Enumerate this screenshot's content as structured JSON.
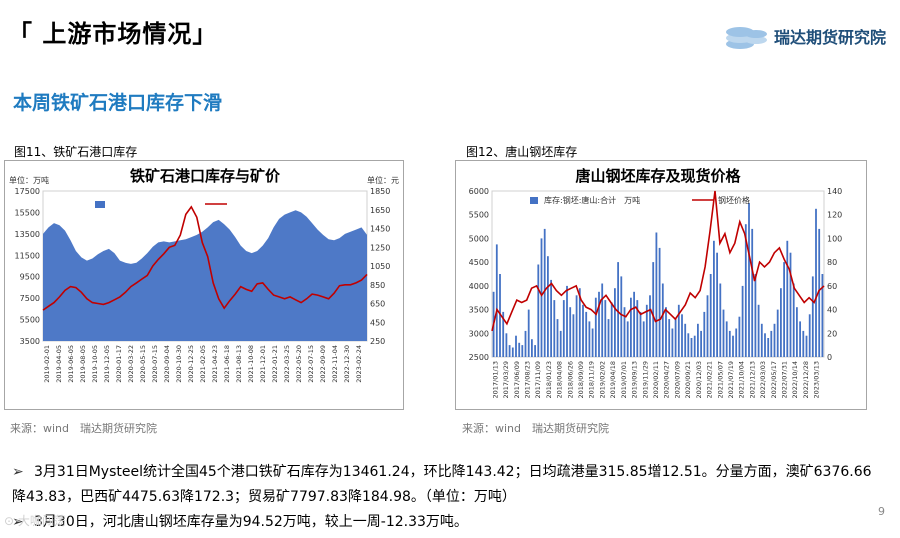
{
  "header": {
    "title": "「 上游市场情况」",
    "logo_text": "瑞达期货研究院"
  },
  "subtitle": "本周铁矿石港口库存下滑",
  "figures": [
    {
      "caption": "图11、铁矿石港口库存",
      "source": "来源：wind　瑞达期货研究院"
    },
    {
      "caption": "图12、唐山钢坯库存",
      "source": "来源：wind　瑞达期货研究院"
    }
  ],
  "bullets": [
    "3月31日Mysteel统计全国45个港口铁矿石库存为13461.24，环比降143.42；日均疏港量315.85增12.51。分量方面，澳矿6376.66降43.83，巴西矿4475.63降172.3；贸易矿7797.83降184.98。（单位：万吨）",
    "3月30日，河北唐山钢坯库存量为94.52万吨，较上一周-12.33万吨。"
  ],
  "page_number": "9",
  "watermark": "⊙ 大咖闯荡",
  "chart_data": [
    {
      "type": "area",
      "title": "铁矿石港口库存与矿价",
      "left_unit": "单位：万吨",
      "right_unit": "单位：元",
      "ylim": [
        3500,
        17500
      ],
      "y2lim": [
        250,
        1850
      ],
      "yticks": [
        "3500",
        "5500",
        "7500",
        "9500",
        "11500",
        "13500",
        "15500",
        "17500"
      ],
      "y2ticks": [
        "250",
        "450",
        "650",
        "850",
        "1050",
        "1250",
        "1450",
        "1650",
        "1850"
      ],
      "xticks": [
        "2019-02-01",
        "2019-04-05",
        "2019-06-05",
        "2019-08-05",
        "2019-10-05",
        "2019-12-05",
        "2020-01-17",
        "2020-03-22",
        "2020-05-15",
        "2020-07-15",
        "2020-09-04",
        "2020-10-30",
        "2020-12-25",
        "2021-02-05",
        "2021-04-23",
        "2021-06-18",
        "2021-08-13",
        "2021-10-08",
        "2021-12-01",
        "2022-01-21",
        "2022-03-25",
        "2022-05-20",
        "2022-07-15",
        "2022-09-09",
        "2022-11-04",
        "2022-12-30",
        "2023-02-24"
      ],
      "series": [
        {
          "name": "库存量（左）",
          "color": "#4472c4",
          "axis": "left",
          "values": [
            13500,
            14100,
            14500,
            14300,
            13800,
            12900,
            11900,
            11300,
            11000,
            11200,
            11600,
            11900,
            12100,
            11700,
            11000,
            10800,
            10700,
            10800,
            11200,
            11700,
            12300,
            12700,
            12800,
            12700,
            12800,
            12900,
            13000,
            13200,
            13400,
            13700,
            14100,
            14600,
            14800,
            14400,
            13900,
            13200,
            12400,
            11900,
            11700,
            11900,
            12400,
            13100,
            14100,
            14900,
            15300,
            15500,
            15700,
            15500,
            15100,
            14500,
            13900,
            13400,
            13000,
            12900,
            13100,
            13500,
            13700,
            13900,
            14100,
            13400
          ]
        },
        {
          "name": "澳洲麦克粉61%（右）",
          "color": "#c00000",
          "axis": "right",
          "values": [
            580,
            620,
            660,
            720,
            790,
            830,
            820,
            770,
            700,
            660,
            650,
            640,
            660,
            690,
            720,
            770,
            830,
            870,
            910,
            950,
            1050,
            1120,
            1180,
            1250,
            1270,
            1380,
            1600,
            1680,
            1570,
            1300,
            1150,
            870,
            700,
            600,
            680,
            750,
            830,
            800,
            780,
            860,
            870,
            800,
            740,
            720,
            700,
            720,
            690,
            660,
            700,
            750,
            740,
            720,
            700,
            760,
            840,
            850,
            850,
            870,
            900,
            960
          ]
        }
      ]
    },
    {
      "type": "bar",
      "title": "唐山钢坯库存及现货价格",
      "ylim": [
        2500,
        6000
      ],
      "y2lim": [
        0,
        140
      ],
      "yticks": [
        "2500",
        "3000",
        "3500",
        "4000",
        "4500",
        "5000",
        "5500",
        "6000"
      ],
      "y2ticks": [
        "0",
        "20",
        "40",
        "60",
        "80",
        "100",
        "120",
        "140"
      ],
      "xticks": [
        "2017/01/13",
        "2017/03/29",
        "2017/06/09",
        "2017/08/23",
        "2017/11/09",
        "2018/01/23",
        "2018/04/08",
        "2018/06/26",
        "2018/09/09",
        "2018/11/19",
        "2019/02/02",
        "2019/04/18",
        "2019/07/01",
        "2019/09/13",
        "2019/11/29",
        "2020/02/11",
        "2020/04/27",
        "2020/07/09",
        "2020/09/21",
        "2020/12/03",
        "2021/02/21",
        "2021/05/07",
        "2021/07/19",
        "2021/10/04",
        "2021/12/13",
        "2022/03/03",
        "2022/05/17",
        "2022/07/31",
        "2022/10/14",
        "2022/12/28",
        "2023/03/13"
      ],
      "series": [
        {
          "name": "库存:钢坯:唐山:合计　万吨",
          "color": "#4472c4",
          "axis": "right",
          "values": [
            55,
            95,
            70,
            38,
            20,
            10,
            8,
            18,
            12,
            10,
            22,
            40,
            15,
            10,
            78,
            100,
            108,
            85,
            65,
            48,
            32,
            22,
            48,
            60,
            42,
            36,
            52,
            58,
            44,
            38,
            30,
            24,
            50,
            55,
            62,
            48,
            32,
            46,
            58,
            80,
            68,
            42,
            30,
            50,
            55,
            48,
            38,
            30,
            44,
            52,
            80,
            105,
            92,
            62,
            42,
            32,
            24,
            32,
            44,
            36,
            28,
            20,
            16,
            18,
            28,
            22,
            38,
            52,
            70,
            98,
            88,
            62,
            40,
            30,
            22,
            18,
            24,
            34,
            60,
            112,
            130,
            108,
            70,
            44,
            28,
            20,
            16,
            22,
            28,
            40,
            58,
            80,
            98,
            88,
            62,
            42,
            30,
            22,
            18,
            36,
            68,
            125,
            108,
            70
          ]
        },
        {
          "name": "钢坯价格",
          "color": "#c00000",
          "axis": "left",
          "values": [
            3050,
            3500,
            3350,
            3200,
            3450,
            3700,
            3650,
            3700,
            3950,
            4000,
            3800,
            3950,
            4050,
            3900,
            3800,
            3900,
            3950,
            4000,
            3700,
            3550,
            3500,
            3400,
            3700,
            3800,
            3650,
            3500,
            3400,
            3350,
            3500,
            3550,
            3400,
            3450,
            3500,
            3250,
            3300,
            3500,
            3400,
            3300,
            3450,
            3600,
            3850,
            3750,
            3900,
            4400,
            5150,
            6000,
            4900,
            5100,
            4700,
            4900,
            5350,
            5100,
            4600,
            4100,
            4500,
            4400,
            4500,
            4700,
            4800,
            4550,
            4350,
            3950,
            3800,
            3650,
            3750,
            3650,
            3900,
            4000
          ]
        }
      ]
    }
  ]
}
